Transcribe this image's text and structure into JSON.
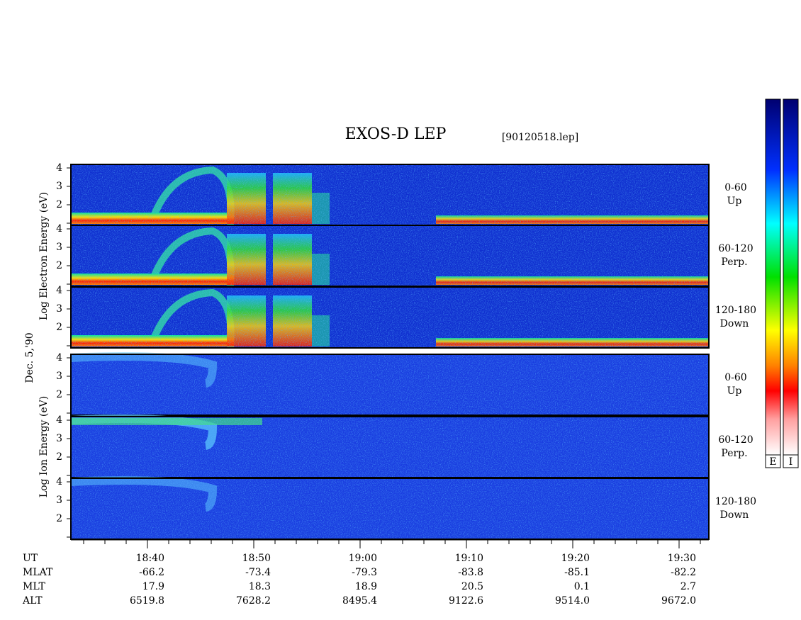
{
  "title": "EXOS-D LEP",
  "file": "[90120518.lep]",
  "date": "Dec. 5,'90",
  "yticks": [
    "4",
    "3",
    "2"
  ],
  "groups": [
    {
      "label": "Log Electron Energy (eV)",
      "panels": [
        {
          "angle": "0-60",
          "dir": "Up"
        },
        {
          "angle": "60-120",
          "dir": "Perp."
        },
        {
          "angle": "120-180",
          "dir": "Down"
        }
      ]
    },
    {
      "label": "Log Ion Energy (eV)",
      "panels": [
        {
          "angle": "0-60",
          "dir": "Up"
        },
        {
          "angle": "60-120",
          "dir": "Perp."
        },
        {
          "angle": "120-180",
          "dir": "Down"
        }
      ]
    }
  ],
  "xaxis": {
    "rows": [
      {
        "name": "UT",
        "values": [
          "18:40",
          "18:50",
          "19:00",
          "19:10",
          "19:20",
          "19:30"
        ]
      },
      {
        "name": "MLAT",
        "values": [
          "-66.2",
          "-73.4",
          "-79.3",
          "-83.8",
          "-85.1",
          "-82.2"
        ]
      },
      {
        "name": "MLT",
        "values": [
          "17.9",
          "18.3",
          "18.9",
          "20.5",
          "0.1",
          "2.7"
        ]
      },
      {
        "name": "ALT",
        "values": [
          "6519.8",
          "7628.2",
          "8495.4",
          "9122.6",
          "9514.0",
          "9672.0"
        ]
      }
    ]
  },
  "colorbars": [
    "E",
    "I"
  ]
}
